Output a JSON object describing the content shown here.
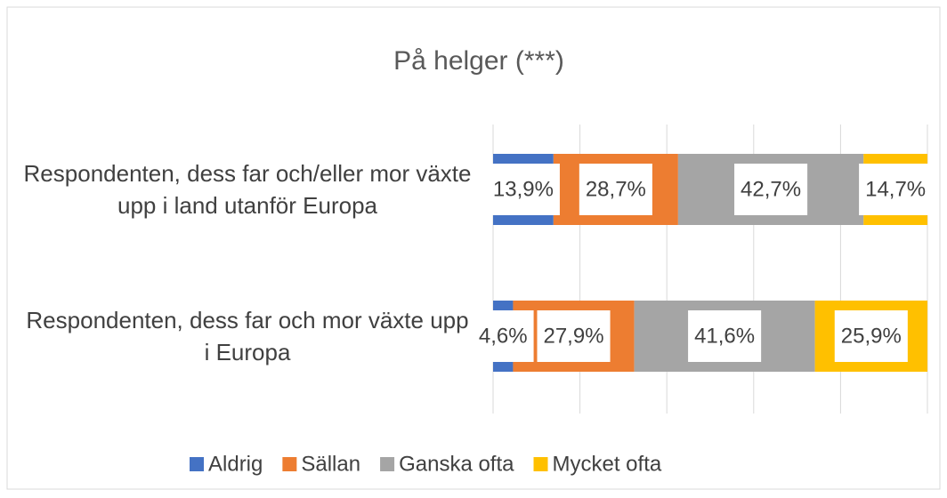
{
  "chart_data": {
    "type": "stacked_bar_horizontal",
    "title": "På helger (***)",
    "categories": [
      "Respondenten, dess far och/eller mor växte upp i land utanför Europa",
      "Respondenten, dess far och mor växte upp i Europa"
    ],
    "series": [
      {
        "name": "Aldrig",
        "color": "#4472c4",
        "values": [
          13.9,
          4.6
        ],
        "value_labels": [
          "13,9%",
          "4,6%"
        ]
      },
      {
        "name": "Sällan",
        "color": "#ed7d31",
        "values": [
          28.7,
          27.9
        ],
        "value_labels": [
          "28,7%",
          "27,9%"
        ]
      },
      {
        "name": "Ganska ofta",
        "color": "#a5a5a5",
        "values": [
          42.7,
          41.6
        ],
        "value_labels": [
          "42,7%",
          "41,6%"
        ]
      },
      {
        "name": "Mycket ofta",
        "color": "#ffc000",
        "values": [
          14.7,
          25.9
        ],
        "value_labels": [
          "14,7%",
          "25,9%"
        ]
      }
    ],
    "xlim": [
      0,
      100
    ],
    "xticks": [
      0,
      20,
      40,
      60,
      80,
      100
    ],
    "grid": true,
    "legend": "bottom"
  }
}
